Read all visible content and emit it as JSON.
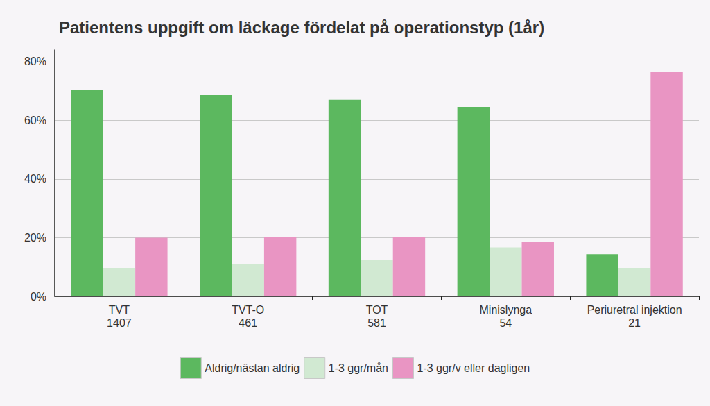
{
  "chart_data": {
    "type": "bar",
    "title": "Patientens uppgift om läckage fördelat på operationstyp (1år)",
    "categories": [
      "TVT\n1407",
      "TVT-O\n461",
      "TOT\n581",
      "Minislynga\n54",
      "Periuretral injektion\n21"
    ],
    "series": [
      {
        "name": "Aldrig/nästan aldrig",
        "color": "#5cb85f",
        "values": [
          70.5,
          68.6,
          67.0,
          64.6,
          14.4
        ]
      },
      {
        "name": "1-3 ggr/mån",
        "color": "#d1e9d2",
        "values": [
          9.7,
          11.1,
          12.5,
          16.7,
          9.7
        ]
      },
      {
        "name": "1-3 ggr/v eller dagligen",
        "color": "#e995c3",
        "values": [
          20.0,
          20.3,
          20.3,
          18.6,
          76.4
        ]
      }
    ],
    "ylim": [
      0,
      84
    ],
    "yticks": [
      {
        "value": 0,
        "label": "0%"
      },
      {
        "value": 20,
        "label": "20%"
      },
      {
        "value": 40,
        "label": "40%"
      },
      {
        "value": 60,
        "label": "60%"
      },
      {
        "value": 80,
        "label": "80%"
      }
    ],
    "grid": true,
    "legend": "bottom"
  }
}
